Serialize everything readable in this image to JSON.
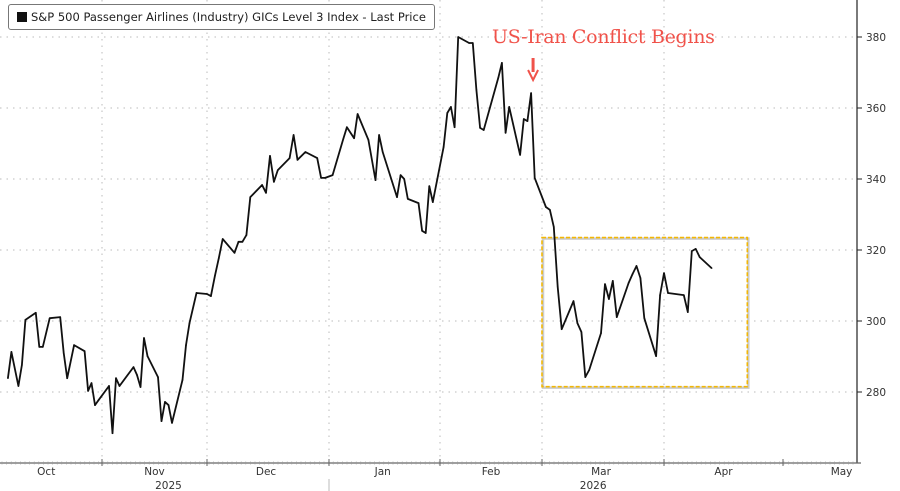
{
  "chart_data": {
    "type": "line",
    "title": "",
    "xlabel": "",
    "ylabel": "",
    "legend": {
      "position": "top-left",
      "entries": [
        "S&P 500 Passenger Airlines (Industry) GICs Level 3 Index - Last Price"
      ]
    },
    "ylim": [
      260,
      390
    ],
    "y_ticks": [
      "280",
      "300",
      "320",
      "340",
      "360",
      "380"
    ],
    "y_axis_side": "right",
    "xlim": [
      "2025-10-01",
      "2026-05-20"
    ],
    "x_month_labels": [
      {
        "label": "Oct",
        "date": "2025-10-16"
      },
      {
        "label": "Nov",
        "date": "2025-11-16"
      },
      {
        "label": "Dec",
        "date": "2025-12-16"
      },
      {
        "label": "Jan",
        "date": "2026-01-16"
      },
      {
        "label": "Feb",
        "date": "2026-02-15"
      },
      {
        "label": "Mar",
        "date": "2026-03-16"
      },
      {
        "label": "Apr",
        "date": "2026-04-16"
      },
      {
        "label": "May",
        "date": "2026-05-16"
      }
    ],
    "x_year_labels": [
      {
        "label": "2025",
        "date": "2025-11-20"
      },
      {
        "label": "2026",
        "date": "2026-03-14"
      }
    ],
    "grid": true,
    "series": [
      {
        "name": "S&P 500 Passenger Airlines (Industry) GICs Level 3 Index - Last Price",
        "color": "#111111",
        "x": [
          "2025-10-05",
          "2025-10-06",
          "2025-10-08",
          "2025-10-09",
          "2025-10-10",
          "2025-10-13",
          "2025-10-14",
          "2025-10-15",
          "2025-10-17",
          "2025-10-20",
          "2025-10-21",
          "2025-10-22",
          "2025-10-24",
          "2025-10-27",
          "2025-10-28",
          "2025-10-29",
          "2025-10-30",
          "2025-10-31",
          "2025-11-03",
          "2025-11-04",
          "2025-11-05",
          "2025-11-06",
          "2025-11-10",
          "2025-11-11",
          "2025-11-12",
          "2025-11-13",
          "2025-11-14",
          "2025-11-17",
          "2025-11-18",
          "2025-11-19",
          "2025-11-20",
          "2025-11-21",
          "2025-11-24",
          "2025-11-25",
          "2025-11-26",
          "2025-11-28",
          "2025-12-01",
          "2025-12-02",
          "2025-12-03",
          "2025-12-04",
          "2025-12-05",
          "2025-12-08",
          "2025-12-09",
          "2025-12-10",
          "2025-12-11",
          "2025-12-12",
          "2025-12-15",
          "2025-12-16",
          "2025-12-17",
          "2025-12-18",
          "2025-12-19",
          "2025-12-22",
          "2025-12-23",
          "2025-12-24",
          "2025-12-26",
          "2025-12-29",
          "2025-12-30",
          "2025-12-31",
          "2026-01-02",
          "2026-01-05",
          "2026-01-06",
          "2026-01-08",
          "2026-01-09",
          "2026-01-12",
          "2026-01-14",
          "2026-01-15",
          "2026-01-16",
          "2026-01-20",
          "2026-01-21",
          "2026-01-22",
          "2026-01-23",
          "2026-01-26",
          "2026-01-27",
          "2026-01-28",
          "2026-01-29",
          "2026-01-30",
          "2026-02-02",
          "2026-02-03",
          "2026-02-04",
          "2026-02-05",
          "2026-02-06",
          "2026-02-09",
          "2026-02-10",
          "2026-02-11",
          "2026-02-12",
          "2026-02-13",
          "2026-02-17",
          "2026-02-18",
          "2026-02-19",
          "2026-02-20",
          "2026-02-23",
          "2026-02-24",
          "2026-02-25",
          "2026-02-26",
          "2026-02-27",
          "2026-03-02",
          "2026-03-03",
          "2026-03-04",
          "2026-03-05",
          "2026-03-06",
          "2026-03-09",
          "2026-03-10",
          "2026-03-11",
          "2026-03-12",
          "2026-03-13",
          "2026-03-16",
          "2026-03-17",
          "2026-03-18",
          "2026-03-19",
          "2026-03-20",
          "2026-03-23",
          "2026-03-24",
          "2026-03-25",
          "2026-03-26",
          "2026-03-27",
          "2026-03-30",
          "2026-03-31",
          "2026-04-01",
          "2026-04-02",
          "2026-04-06",
          "2026-04-07",
          "2026-04-08",
          "2026-04-09",
          "2026-04-10",
          "2026-04-13"
        ],
        "values": [
          283.9,
          291.3,
          281.7,
          287.6,
          300.3,
          302.3,
          292.7,
          292.7,
          300.8,
          301.1,
          291.0,
          283.9,
          293.2,
          291.5,
          280.3,
          282.5,
          276.3,
          277.7,
          281.7,
          268.4,
          283.9,
          281.7,
          287.0,
          284.8,
          281.4,
          295.2,
          290.1,
          284.2,
          271.8,
          277.2,
          276.3,
          271.3,
          283.4,
          293.2,
          299.4,
          307.9,
          307.6,
          307.0,
          312.7,
          317.7,
          323.1,
          319.2,
          322.3,
          322.3,
          324.2,
          334.9,
          338.3,
          336.1,
          346.5,
          339.2,
          342.5,
          345.9,
          352.4,
          345.4,
          347.6,
          345.9,
          340.3,
          340.3,
          341.1,
          351.3,
          354.6,
          351.5,
          358.3,
          351.0,
          339.7,
          352.4,
          347.6,
          334.9,
          341.1,
          340.0,
          334.4,
          333.2,
          325.4,
          324.8,
          338.0,
          333.5,
          349.0,
          358.6,
          360.3,
          354.6,
          380.0,
          378.3,
          378.3,
          365.1,
          354.4,
          353.8,
          368.5,
          372.7,
          353.0,
          360.3,
          346.8,
          356.9,
          356.3,
          364.2,
          340.3,
          332.1,
          331.3,
          326.5,
          309.6,
          297.7,
          305.6,
          299.4,
          296.9,
          284.2,
          286.2,
          296.6,
          310.4,
          306.2,
          311.3,
          301.1,
          310.7,
          313.2,
          315.5,
          312.1,
          300.8,
          290.1,
          307.3,
          313.5,
          307.9,
          307.3,
          302.5,
          319.7,
          320.3,
          318.0,
          314.9
        ]
      }
    ],
    "annotations": [
      {
        "type": "text",
        "text": "US-Iran Conflict Begins",
        "color": "#f0524a"
      },
      {
        "type": "arrow",
        "date": "2026-02-26",
        "color": "#f0524a",
        "direction": "down"
      },
      {
        "type": "highlight-box",
        "x_range": [
          "2026-03-01",
          "2026-04-22"
        ],
        "y_range": [
          281.5,
          323.5
        ],
        "color": "#f2b705",
        "style": "dashed"
      }
    ]
  }
}
